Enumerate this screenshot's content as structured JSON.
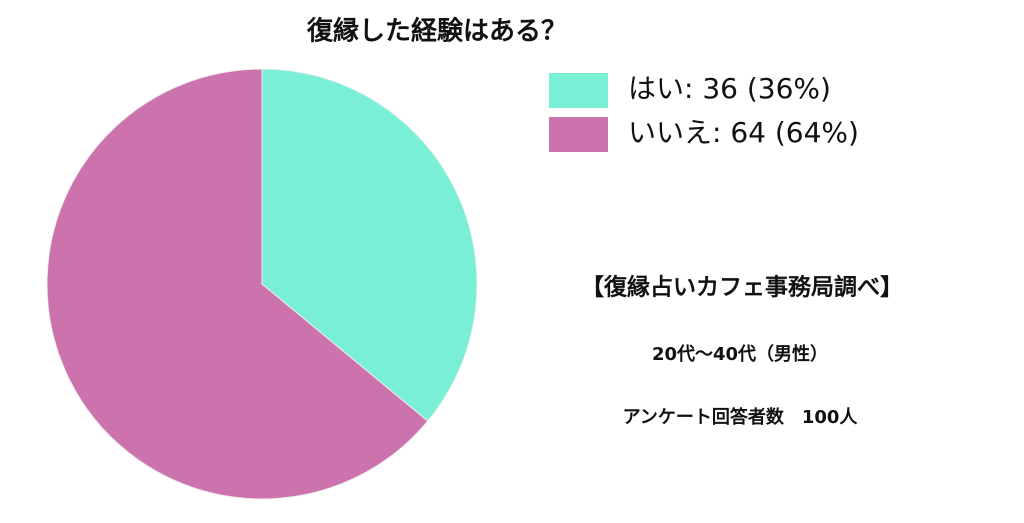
{
  "chart_data": {
    "type": "pie",
    "title": "復縁した経験はある？",
    "categories": [
      "はい: 36 (36%)",
      "いいえ: 64 (64%)"
    ],
    "values": [
      36,
      64
    ],
    "colors": [
      "#79efd5",
      "#cc73ae"
    ],
    "annotations": [
      "【復縁占いカフェ事務局調べ】",
      "20代〜40代（男性）",
      "アンケート回答者数　100人"
    ]
  }
}
